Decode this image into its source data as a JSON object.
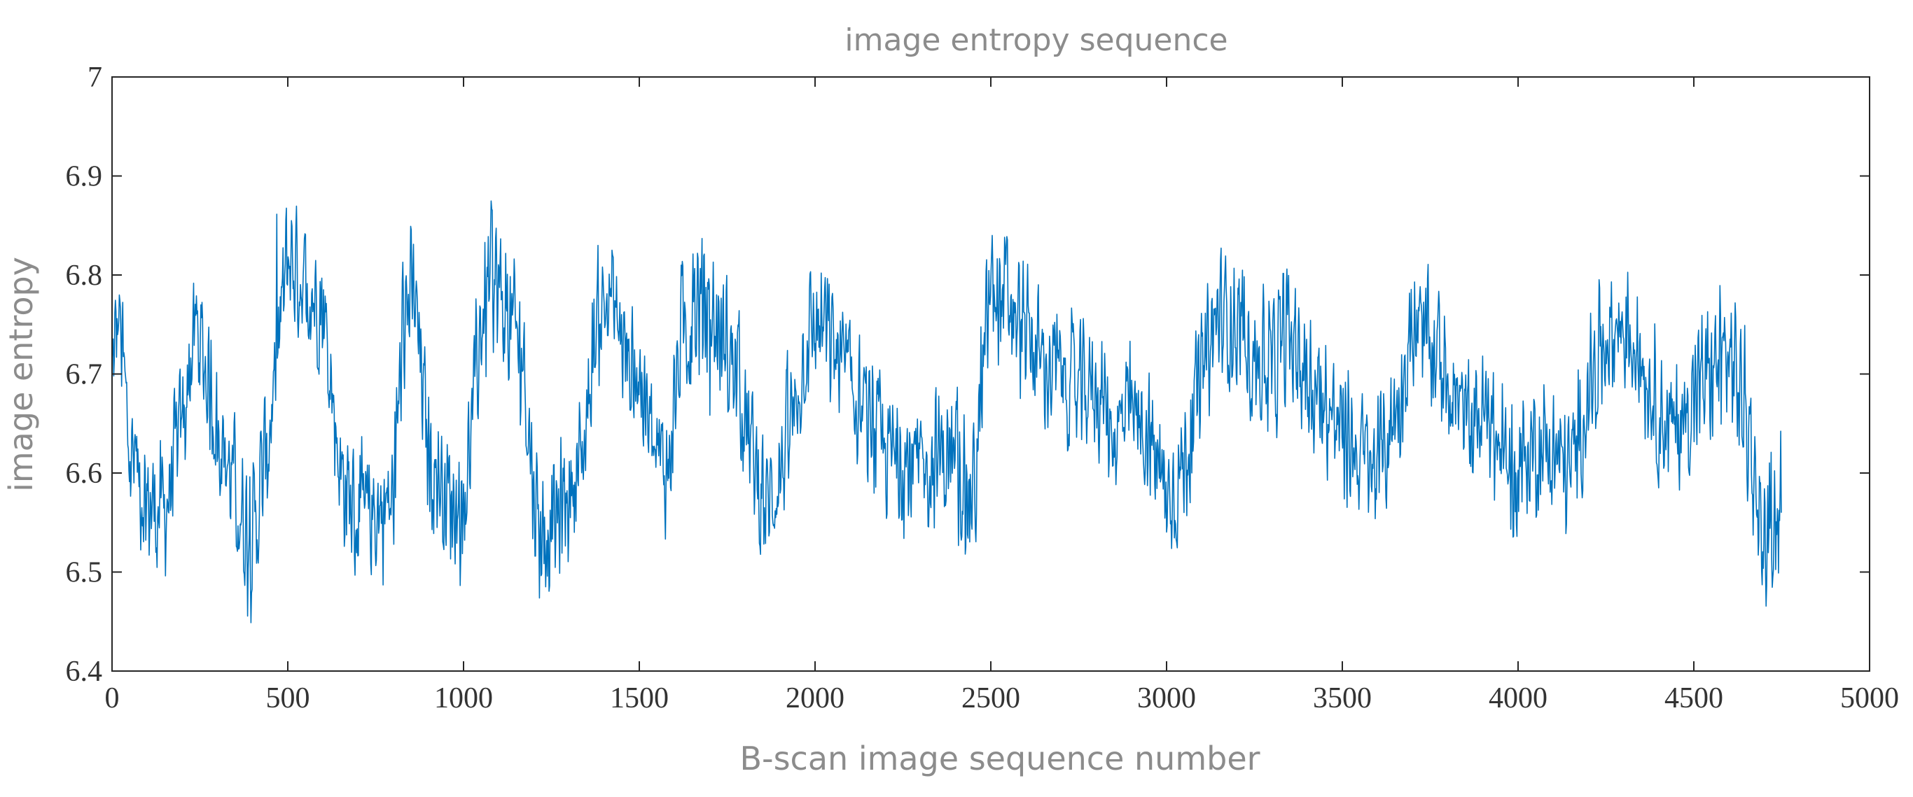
{
  "chart_data": {
    "type": "line",
    "title": "image entropy sequence",
    "xlabel": "B-scan image sequence number",
    "ylabel": "image entropy",
    "xlim": [
      0,
      5000
    ],
    "ylim": [
      6.4,
      7.0
    ],
    "xticks": [
      0,
      500,
      1000,
      1500,
      2000,
      2500,
      3000,
      3500,
      4000,
      4500,
      5000
    ],
    "yticks": [
      6.4,
      6.5,
      6.6,
      6.7,
      6.8,
      6.9,
      7.0
    ],
    "xtick_labels": [
      "0",
      "500",
      "1000",
      "1500",
      "2000",
      "2500",
      "3000",
      "3500",
      "4000",
      "4500",
      "5000"
    ],
    "ytick_labels": [
      "6.4",
      "6.5",
      "6.6",
      "6.7",
      "6.8",
      "6.9",
      "7"
    ],
    "grid": false,
    "line_color": "#0072bd",
    "series": [
      {
        "x": [
          0,
          20,
          50,
          100,
          150,
          200,
          240,
          280,
          320,
          360,
          400,
          440,
          480,
          500,
          550,
          600,
          650,
          700,
          750,
          800,
          830,
          860,
          900,
          950,
          1000,
          1050,
          1080,
          1120,
          1170,
          1200,
          1220,
          1260,
          1300,
          1340,
          1380,
          1420,
          1460,
          1500,
          1540,
          1580,
          1620,
          1660,
          1700,
          1740,
          1780,
          1820,
          1860,
          1900,
          1940,
          1980,
          2020,
          2060,
          2100,
          2150,
          2200,
          2250,
          2300,
          2350,
          2400,
          2450,
          2500,
          2550,
          2600,
          2650,
          2700,
          2750,
          2800,
          2850,
          2900,
          2950,
          3000,
          3050,
          3100,
          3150,
          3200,
          3250,
          3300,
          3350,
          3400,
          3450,
          3500,
          3550,
          3600,
          3650,
          3700,
          3750,
          3800,
          3850,
          3900,
          3950,
          4000,
          4050,
          4100,
          4150,
          4200,
          4250,
          4300,
          4350,
          4400,
          4450,
          4500,
          4550,
          4600,
          4650,
          4700,
          4750
        ],
        "y": [
          6.7,
          6.76,
          6.62,
          6.57,
          6.56,
          6.65,
          6.75,
          6.68,
          6.62,
          6.57,
          6.53,
          6.62,
          6.75,
          6.82,
          6.79,
          6.77,
          6.6,
          6.55,
          6.56,
          6.57,
          6.76,
          6.78,
          6.62,
          6.58,
          6.56,
          6.75,
          6.8,
          6.76,
          6.72,
          6.58,
          6.54,
          6.55,
          6.58,
          6.62,
          6.76,
          6.78,
          6.72,
          6.7,
          6.62,
          6.6,
          6.74,
          6.77,
          6.76,
          6.73,
          6.7,
          6.62,
          6.56,
          6.6,
          6.66,
          6.74,
          6.75,
          6.72,
          6.69,
          6.65,
          6.62,
          6.61,
          6.6,
          6.62,
          6.61,
          6.57,
          6.79,
          6.77,
          6.74,
          6.71,
          6.7,
          6.68,
          6.69,
          6.64,
          6.66,
          6.64,
          6.57,
          6.61,
          6.7,
          6.76,
          6.75,
          6.72,
          6.7,
          6.74,
          6.7,
          6.67,
          6.64,
          6.62,
          6.6,
          6.66,
          6.74,
          6.73,
          6.7,
          6.65,
          6.66,
          6.62,
          6.6,
          6.63,
          6.62,
          6.6,
          6.68,
          6.74,
          6.75,
          6.72,
          6.66,
          6.64,
          6.68,
          6.7,
          6.72,
          6.66,
          6.52,
          6.58
        ],
        "band": [
          0.08,
          0.09,
          0.08,
          0.08,
          0.08,
          0.08,
          0.08,
          0.08,
          0.08,
          0.09,
          0.09,
          0.09,
          0.09,
          0.09,
          0.08,
          0.08,
          0.08,
          0.09,
          0.08,
          0.08,
          0.09,
          0.08,
          0.08,
          0.08,
          0.08,
          0.09,
          0.1,
          0.09,
          0.09,
          0.08,
          0.09,
          0.08,
          0.08,
          0.08,
          0.08,
          0.08,
          0.08,
          0.08,
          0.08,
          0.08,
          0.09,
          0.11,
          0.09,
          0.09,
          0.09,
          0.08,
          0.08,
          0.08,
          0.08,
          0.08,
          0.08,
          0.08,
          0.08,
          0.08,
          0.08,
          0.08,
          0.08,
          0.08,
          0.08,
          0.1,
          0.09,
          0.09,
          0.08,
          0.08,
          0.08,
          0.08,
          0.08,
          0.08,
          0.08,
          0.08,
          0.08,
          0.08,
          0.08,
          0.08,
          0.08,
          0.08,
          0.09,
          0.1,
          0.09,
          0.08,
          0.08,
          0.08,
          0.08,
          0.08,
          0.08,
          0.08,
          0.08,
          0.08,
          0.08,
          0.08,
          0.08,
          0.08,
          0.08,
          0.08,
          0.08,
          0.08,
          0.08,
          0.08,
          0.08,
          0.08,
          0.09,
          0.09,
          0.09,
          0.1,
          0.08,
          0.09
        ]
      }
    ]
  }
}
